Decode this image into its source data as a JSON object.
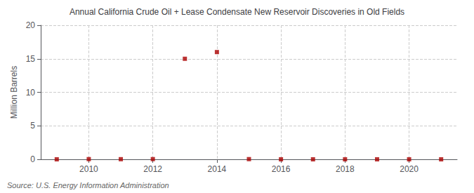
{
  "chart_data": {
    "type": "scatter",
    "title": "Annual California Crude Oil + Lease Condensate New Reservoir Discoveries in Old Fields",
    "ylabel": "Million Barrels",
    "annotation": "Source: U.S. Energy Information Administration",
    "x": [
      2009,
      2010,
      2011,
      2012,
      2013,
      2014,
      2015,
      2016,
      2017,
      2018,
      2019,
      2020,
      2021
    ],
    "values": [
      0.0,
      0.03,
      0.02,
      0.03,
      15.0,
      16.0,
      0.03,
      0.0,
      0.0,
      0.0,
      0.0,
      0.0,
      0.0
    ],
    "color": "#aa0000",
    "marker": "square",
    "xlim": [
      2008.5,
      2021.5
    ],
    "xticks": [
      2010,
      2012,
      2014,
      2016,
      2018,
      2020
    ],
    "ylim": [
      0,
      20
    ],
    "yticks": [
      0,
      5,
      10,
      15,
      20
    ],
    "grid": true
  }
}
